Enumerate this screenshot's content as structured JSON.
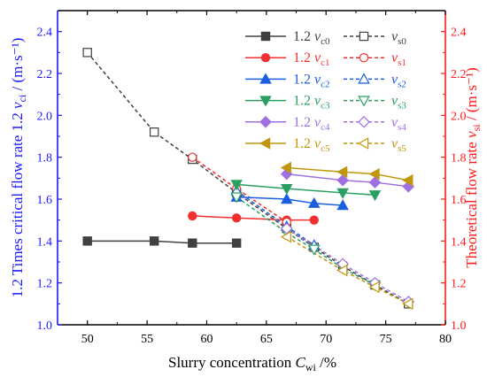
{
  "chart_data": {
    "type": "line",
    "xlabel": {
      "text": "Slurry concentration ",
      "var": "C",
      "sub": "wi",
      "suffix": " /%"
    },
    "ylabel_left": {
      "prefix": "1.2 Times critical flow rate 1.2 ",
      "var": "v",
      "sub": "ci",
      "suffix": " / (m·s⁻¹)"
    },
    "ylabel_right": {
      "prefix": "Theoretical flow rate ",
      "var": "v",
      "sub": "si",
      "suffix": " / (m·s⁻¹)"
    },
    "xlim": [
      47.5,
      80
    ],
    "ylim": [
      1.0,
      2.5
    ],
    "xticks": [
      "50",
      "55",
      "60",
      "65",
      "70",
      "75",
      "80"
    ],
    "yticks": [
      "1.0",
      "1.2",
      "1.4",
      "1.6",
      "1.8",
      "2.0",
      "2.2",
      "2.4"
    ],
    "colors": {
      "left_axis": "#1a1aff",
      "right_axis": "#ff1a1a",
      "frame": "#000000"
    },
    "legend_position": "top-right",
    "series": [
      {
        "name": "1.2 v_c0",
        "legend": {
          "prefix": "1.2 ",
          "var": "v",
          "sub": "c0"
        },
        "color": "#404040",
        "dash": "solid",
        "marker": "square",
        "filled": true,
        "x": [
          50,
          55.6,
          58.8,
          62.5
        ],
        "y": [
          1.4,
          1.4,
          1.39,
          1.39
        ]
      },
      {
        "name": "v_s0",
        "legend": {
          "prefix": "",
          "var": "v",
          "sub": "s0"
        },
        "color": "#404040",
        "dash": "dashed",
        "marker": "square",
        "filled": false,
        "x": [
          50,
          55.6,
          58.8,
          62.5,
          66.7,
          69.0,
          71.4,
          74.1,
          76.9
        ],
        "y": [
          2.3,
          1.92,
          1.79,
          1.63,
          1.46,
          1.37,
          1.28,
          1.19,
          1.1
        ]
      },
      {
        "name": "1.2 v_c1",
        "legend": {
          "prefix": "1.2 ",
          "var": "v",
          "sub": "c1"
        },
        "color": "#f03030",
        "dash": "solid",
        "marker": "circle",
        "filled": true,
        "x": [
          58.8,
          62.5,
          66.7,
          69.0
        ],
        "y": [
          1.52,
          1.51,
          1.5,
          1.5
        ]
      },
      {
        "name": "v_s1",
        "legend": {
          "prefix": "",
          "var": "v",
          "sub": "s1"
        },
        "color": "#f03030",
        "dash": "dashed",
        "marker": "circle",
        "filled": false,
        "x": [
          58.8,
          62.5,
          66.7
        ],
        "y": [
          1.8,
          1.65,
          1.49
        ]
      },
      {
        "name": "1.2 v_c2",
        "legend": {
          "prefix": "1.2 ",
          "var": "v",
          "sub": "c2"
        },
        "color": "#1a5fe0",
        "dash": "solid",
        "marker": "triangle-up",
        "filled": true,
        "x": [
          62.5,
          66.7,
          69.0,
          71.4
        ],
        "y": [
          1.61,
          1.6,
          1.58,
          1.57
        ]
      },
      {
        "name": "v_s2",
        "legend": {
          "prefix": "",
          "var": "v",
          "sub": "s2"
        },
        "color": "#1a5fe0",
        "dash": "dashed",
        "marker": "triangle-up",
        "filled": false,
        "x": [
          62.5,
          66.7,
          69.0
        ],
        "y": [
          1.64,
          1.47,
          1.38
        ]
      },
      {
        "name": "1.2 v_c3",
        "legend": {
          "prefix": "1.2 ",
          "var": "v",
          "sub": "c3"
        },
        "color": "#2aa060",
        "dash": "solid",
        "marker": "triangle-down",
        "filled": true,
        "x": [
          62.5,
          66.7,
          71.4,
          74.1
        ],
        "y": [
          1.67,
          1.65,
          1.63,
          1.62
        ]
      },
      {
        "name": "v_s3",
        "legend": {
          "prefix": "",
          "var": "v",
          "sub": "s3"
        },
        "color": "#2aa060",
        "dash": "dashed",
        "marker": "triangle-down",
        "filled": false,
        "x": [
          62.5,
          66.7,
          69.0,
          71.4,
          74.1
        ],
        "y": [
          1.61,
          1.44,
          1.36,
          1.27,
          1.19
        ]
      },
      {
        "name": "1.2 v_c4",
        "legend": {
          "prefix": "1.2 ",
          "var": "v",
          "sub": "c4"
        },
        "color": "#a070e0",
        "dash": "solid",
        "marker": "diamond",
        "filled": true,
        "x": [
          66.7,
          71.4,
          74.1,
          76.9
        ],
        "y": [
          1.72,
          1.69,
          1.68,
          1.66
        ]
      },
      {
        "name": "v_s4",
        "legend": {
          "prefix": "",
          "var": "v",
          "sub": "s4"
        },
        "color": "#a070e0",
        "dash": "dashed",
        "marker": "diamond",
        "filled": false,
        "x": [
          66.7,
          71.4,
          74.1,
          76.9
        ],
        "y": [
          1.46,
          1.29,
          1.2,
          1.11
        ]
      },
      {
        "name": "1.2 v_c5",
        "legend": {
          "prefix": "1.2 ",
          "var": "v",
          "sub": "c5"
        },
        "color": "#c0960c",
        "dash": "solid",
        "marker": "triangle-left",
        "filled": true,
        "x": [
          66.7,
          71.4,
          74.1,
          76.9
        ],
        "y": [
          1.75,
          1.73,
          1.72,
          1.69
        ]
      },
      {
        "name": "v_s5",
        "legend": {
          "prefix": "",
          "var": "v",
          "sub": "s5"
        },
        "color": "#c0960c",
        "dash": "dashed",
        "marker": "triangle-left",
        "filled": false,
        "x": [
          66.7,
          71.4,
          74.1,
          76.9
        ],
        "y": [
          1.42,
          1.26,
          1.18,
          1.1
        ]
      }
    ]
  }
}
